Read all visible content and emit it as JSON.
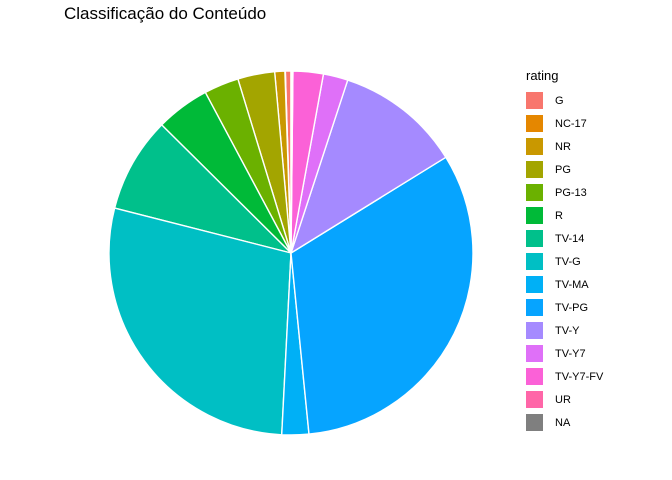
{
  "chart_data": {
    "type": "pie",
    "title": "Classificação do Conteúdo",
    "legend_title": "rating",
    "legend_position": "right",
    "categories": [
      "G",
      "NC-17",
      "NR",
      "PG",
      "PG-13",
      "R",
      "TV-14",
      "TV-G",
      "TV-MA",
      "TV-PG",
      "TV-Y",
      "TV-Y7",
      "TV-Y7-FV",
      "UR",
      "NA"
    ],
    "values": [
      0.5,
      0.04,
      0.9,
      3.3,
      3.1,
      4.8,
      8.5,
      28.3,
      2.4,
      32.4,
      11.2,
      2.2,
      2.7,
      0.07,
      0.1
    ],
    "slice_order_counterclockwise_from_top": [
      "G",
      "NC-17",
      "NR",
      "PG",
      "PG-13",
      "R",
      "TV-14",
      "TV-G",
      "TV-MA",
      "TV-PG",
      "TV-Y",
      "TV-Y7",
      "TV-Y7-FV",
      "UR",
      "NA"
    ],
    "colors": {
      "G": "#F8766D",
      "NC-17": "#E58700",
      "NR": "#C99800",
      "PG": "#A3A500",
      "PG-13": "#6BB100",
      "R": "#00BA38",
      "TV-14": "#00C08B",
      "TV-G": "#00BFC4",
      "TV-MA": "#00B0F6",
      "TV-PG": "#06A4FF",
      "TV-Y": "#A58AFF",
      "TV-Y7": "#DF70F8",
      "TV-Y7-FV": "#FB61D7",
      "UR": "#FF66A8",
      "NA": "#7F7F7F"
    },
    "legend_order": [
      "G",
      "NC-17",
      "NR",
      "PG",
      "PG-13",
      "R",
      "TV-14",
      "TV-G",
      "TV-MA",
      "TV-PG",
      "TV-Y",
      "TV-Y7",
      "TV-Y7-FV",
      "UR",
      "NA"
    ],
    "grid": false
  }
}
